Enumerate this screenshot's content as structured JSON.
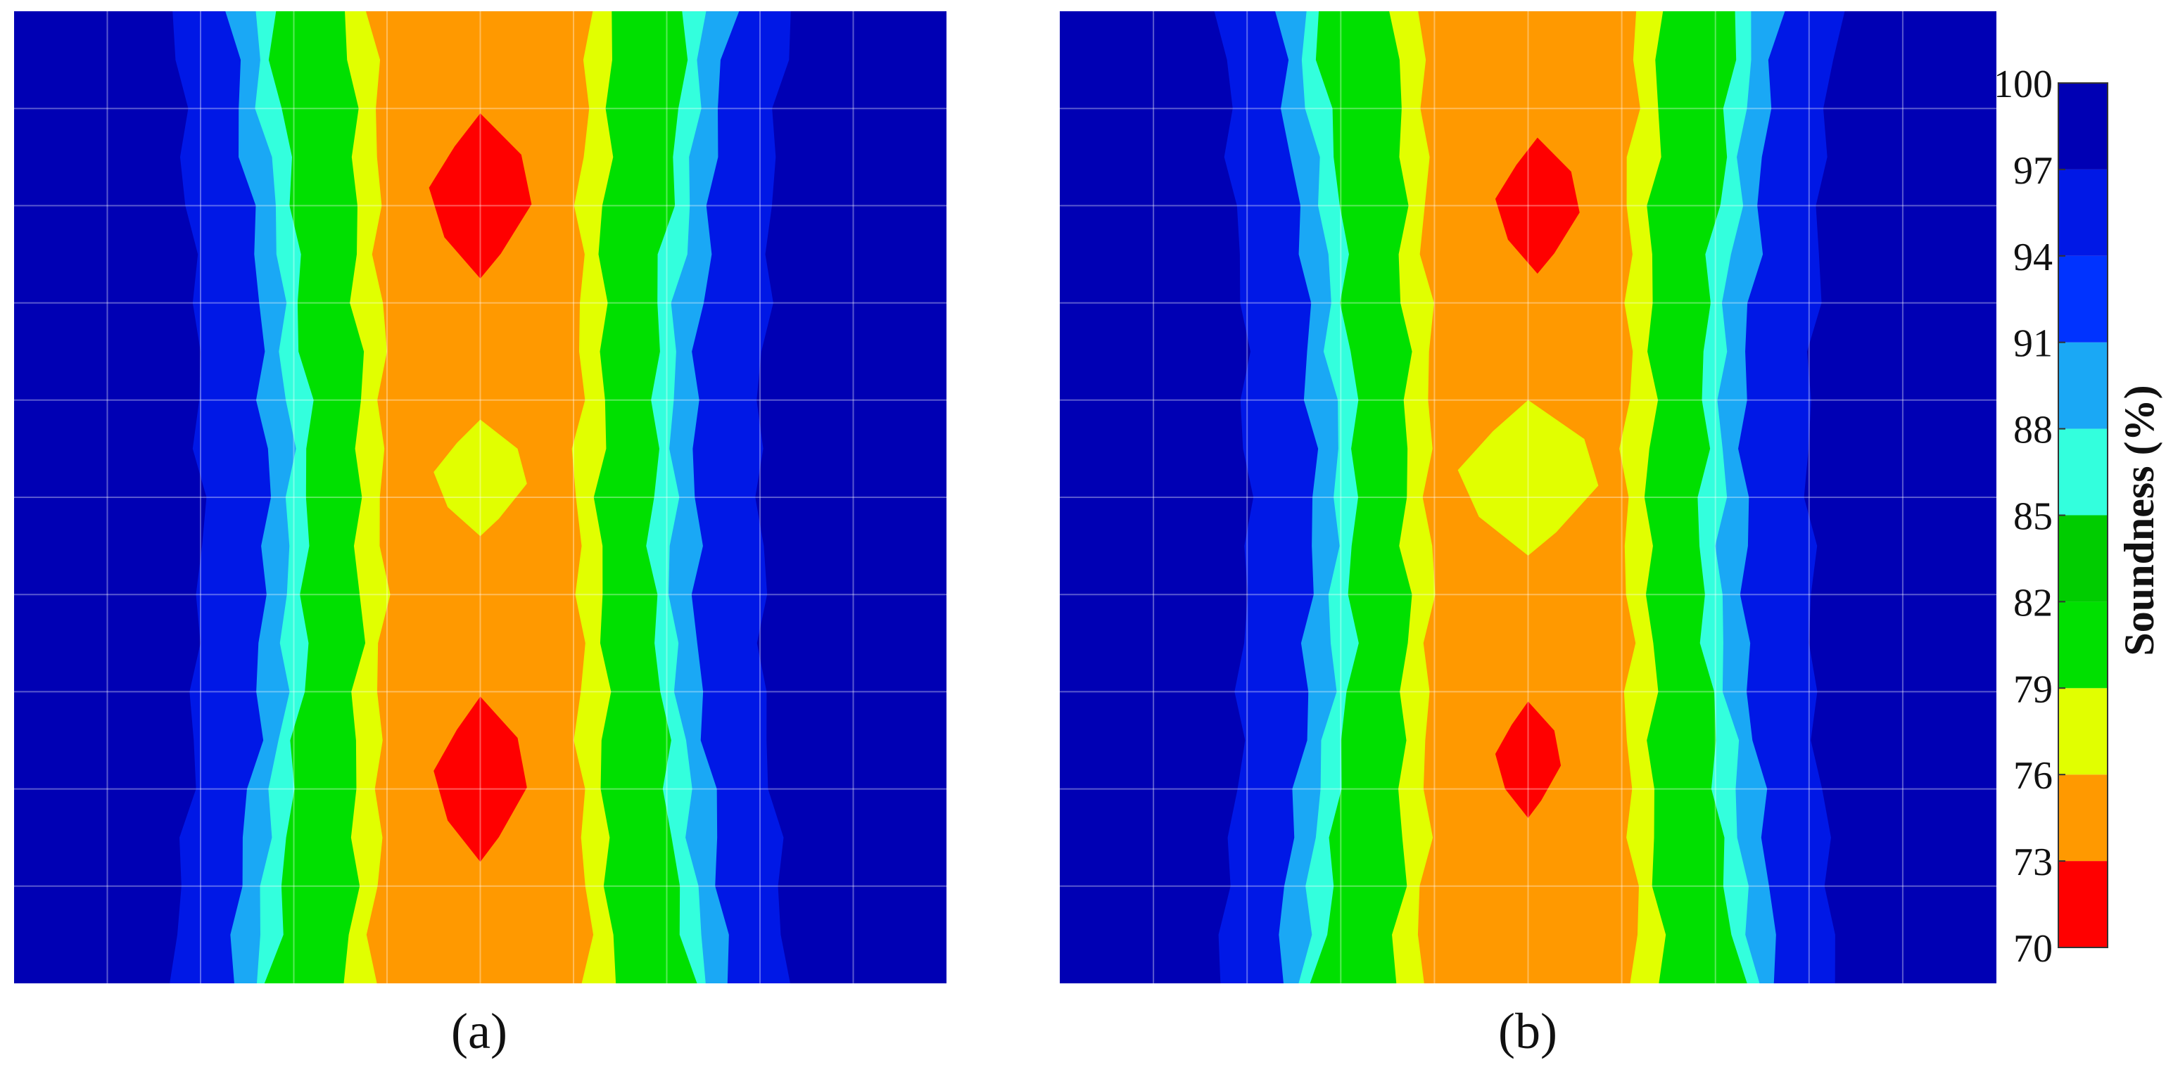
{
  "chart_data": {
    "type": "contour",
    "panels": [
      {
        "label": "(a)"
      },
      {
        "label": "(b)"
      }
    ],
    "colorbar": {
      "label": "Soundness (%)",
      "ticks": [
        70,
        73,
        76,
        79,
        82,
        85,
        88,
        91,
        94,
        97,
        100
      ],
      "colors": [
        "#ff0000",
        "#ff9900",
        "#e1ff00",
        "#00e000",
        "#00cc00",
        "#33ffdd",
        "#1aa8f5",
        "#0033ff",
        "#0018e6",
        "#0000b4"
      ]
    },
    "grid": true
  }
}
